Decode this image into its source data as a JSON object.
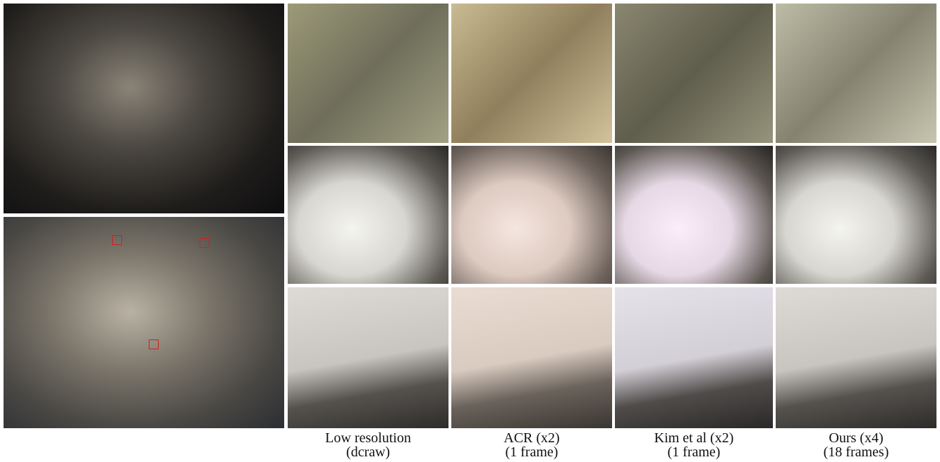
{
  "figure": {
    "columns": [
      {
        "label": "Low resolution",
        "sublabel": "(dcraw)"
      },
      {
        "label": "ACR (x2)",
        "sublabel": "(1 frame)"
      },
      {
        "label": "Kim et al (x2)",
        "sublabel": "(1 frame)"
      },
      {
        "label": "Ours (x4)",
        "sublabel": "(18 frames)"
      }
    ]
  }
}
